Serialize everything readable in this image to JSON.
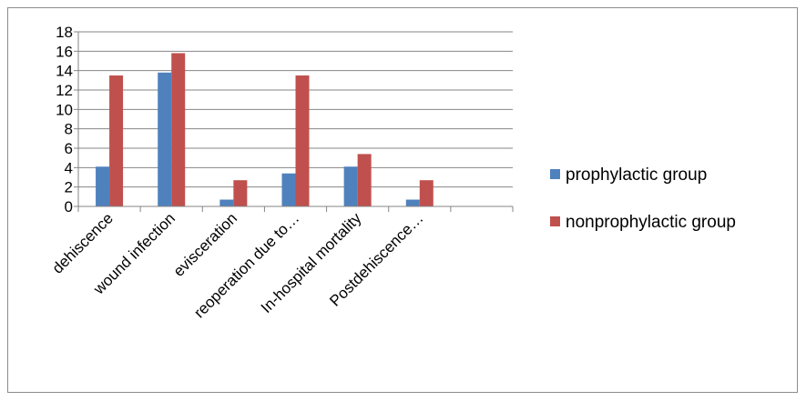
{
  "chart_data": {
    "type": "bar",
    "title": "",
    "xlabel": "",
    "ylabel": "",
    "categories": [
      "dehiscence",
      "wound infection",
      "evisceration",
      "reoperation due to…",
      "In-hospital mortality",
      "Postdehiscence…",
      ""
    ],
    "series": [
      {
        "name": "prophylactic group",
        "color": "#4f81bd",
        "values": [
          4.1,
          13.8,
          0.7,
          3.4,
          4.1,
          0.7,
          null
        ]
      },
      {
        "name": "nonprophylactic group",
        "color": "#c0504d",
        "values": [
          13.5,
          15.8,
          2.7,
          13.5,
          5.4,
          2.7,
          null
        ]
      }
    ],
    "ylim": [
      0,
      18
    ],
    "yticks": [
      0,
      2,
      4,
      6,
      8,
      10,
      12,
      14,
      16,
      18
    ],
    "grid": true,
    "legend_position": "right"
  }
}
